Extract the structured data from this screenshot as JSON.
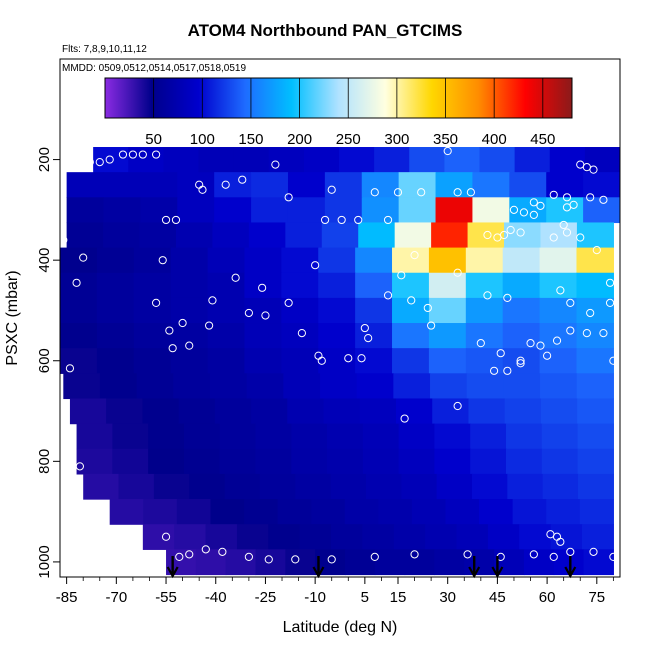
{
  "chart_data": {
    "type": "heatmap",
    "title": "ATOM4 Northbound PAN_GTCIMS",
    "flights_note": "Flts: 7,8,9,10,11,12",
    "dates_note": "MMDD: 0509,0512,0514,0517,0518,0519",
    "xlabel": "Latitude (deg N)",
    "ylabel": "PSXC (mbar)",
    "xlim": [
      -87,
      82
    ],
    "ylim": [
      1030,
      0
    ],
    "x_ticks": [
      -85,
      -70,
      -55,
      -40,
      -25,
      -10,
      5,
      15,
      30,
      45,
      60,
      75
    ],
    "y_ticks": [
      200,
      400,
      600,
      800,
      1000
    ],
    "colorbar": {
      "ticks": [
        50,
        100,
        150,
        200,
        250,
        300,
        350,
        400,
        450
      ],
      "range": [
        0,
        480
      ],
      "colors": [
        "#8a2be2",
        "#00008b",
        "#0000cd",
        "#1e6bff",
        "#00bfff",
        "#b0e2ff",
        "#ffffe0",
        "#ffd700",
        "#ff8c00",
        "#ff0000",
        "#8b1a1a"
      ]
    },
    "grid": false,
    "pressure_bins": [
      200,
      250,
      300,
      350,
      400,
      450,
      500,
      550,
      600,
      650,
      700,
      750,
      800,
      850,
      900,
      950,
      1000
    ],
    "lat_ranges": [
      [
        -77,
        82
      ],
      [
        -85,
        82
      ],
      [
        -85,
        82
      ],
      [
        -85,
        80
      ],
      [
        -87,
        80
      ],
      [
        -87,
        80
      ],
      [
        -87,
        80
      ],
      [
        -87,
        80
      ],
      [
        -87,
        80
      ],
      [
        -86,
        80
      ],
      [
        -84,
        80
      ],
      [
        -82,
        80
      ],
      [
        -82,
        80
      ],
      [
        -80,
        80
      ],
      [
        -72,
        80
      ],
      [
        -62,
        80
      ],
      [
        -55,
        80
      ]
    ],
    "values": [
      [
        100,
        90,
        85,
        80,
        80,
        85,
        90,
        100,
        110,
        130,
        140,
        130,
        110,
        95,
        85
      ],
      [
        80,
        80,
        80,
        85,
        110,
        115,
        95,
        120,
        160,
        220,
        175,
        150,
        130,
        95,
        100
      ],
      [
        60,
        65,
        70,
        85,
        95,
        110,
        110,
        120,
        165,
        220,
        440,
        280,
        180,
        200,
        140
      ],
      [
        55,
        60,
        65,
        75,
        85,
        95,
        110,
        125,
        190,
        280,
        420,
        320,
        230,
        240,
        200
      ],
      [
        50,
        55,
        60,
        70,
        80,
        90,
        100,
        120,
        160,
        300,
        350,
        300,
        250,
        270,
        320
      ],
      [
        55,
        60,
        65,
        70,
        75,
        90,
        100,
        110,
        140,
        200,
        260,
        200,
        180,
        200,
        190
      ],
      [
        55,
        60,
        65,
        70,
        75,
        80,
        90,
        100,
        120,
        180,
        220,
        170,
        150,
        160,
        170
      ],
      [
        50,
        55,
        60,
        65,
        70,
        80,
        85,
        95,
        110,
        150,
        170,
        150,
        140,
        150,
        160
      ],
      [
        45,
        50,
        55,
        60,
        65,
        75,
        80,
        90,
        100,
        120,
        140,
        135,
        130,
        140,
        150
      ],
      [
        45,
        50,
        55,
        60,
        65,
        70,
        80,
        90,
        95,
        110,
        125,
        130,
        130,
        135,
        140
      ],
      [
        40,
        45,
        50,
        55,
        60,
        65,
        75,
        80,
        85,
        95,
        110,
        120,
        125,
        130,
        135
      ],
      [
        40,
        45,
        50,
        55,
        60,
        65,
        70,
        75,
        80,
        90,
        100,
        110,
        120,
        125,
        130
      ],
      [
        38,
        42,
        48,
        52,
        58,
        62,
        68,
        72,
        78,
        85,
        95,
        105,
        115,
        120,
        125
      ],
      [
        35,
        40,
        45,
        50,
        55,
        60,
        65,
        70,
        75,
        80,
        90,
        100,
        110,
        115,
        120
      ],
      [
        35,
        38,
        42,
        48,
        52,
        58,
        62,
        68,
        72,
        78,
        85,
        95,
        105,
        110,
        115
      ],
      [
        32,
        35,
        40,
        45,
        50,
        55,
        60,
        65,
        70,
        75,
        80,
        90,
        100,
        105,
        110
      ],
      [
        30,
        32,
        35,
        40,
        45,
        50,
        55,
        60,
        60,
        65,
        70,
        80,
        90,
        95,
        100
      ]
    ],
    "sample_points": [
      [
        -68,
        190
      ],
      [
        -65,
        190
      ],
      [
        -62,
        190
      ],
      [
        -58,
        190
      ],
      [
        -72,
        200
      ],
      [
        -78,
        205
      ],
      [
        -75,
        205
      ],
      [
        -84,
        215
      ],
      [
        -80,
        215
      ],
      [
        -22,
        210
      ],
      [
        -45,
        250
      ],
      [
        -37,
        250
      ],
      [
        -44,
        260
      ],
      [
        -32,
        240
      ],
      [
        -18,
        275
      ],
      [
        -5,
        260
      ],
      [
        15,
        265
      ],
      [
        22,
        265
      ],
      [
        8,
        265
      ],
      [
        33,
        265
      ],
      [
        37,
        265
      ],
      [
        72,
        215
      ],
      [
        70,
        210
      ],
      [
        74,
        220
      ],
      [
        62,
        270
      ],
      [
        66,
        275
      ],
      [
        73,
        275
      ],
      [
        77,
        280
      ],
      [
        56,
        285
      ],
      [
        58,
        292
      ],
      [
        68,
        290
      ],
      [
        66,
        295
      ],
      [
        50,
        300
      ],
      [
        53,
        305
      ],
      [
        56,
        310
      ],
      [
        -52,
        320
      ],
      [
        -55,
        320
      ],
      [
        -7,
        320
      ],
      [
        -2,
        320
      ],
      [
        3,
        320
      ],
      [
        12,
        320
      ],
      [
        65,
        330
      ],
      [
        45,
        355
      ],
      [
        47,
        350
      ],
      [
        52,
        345
      ],
      [
        49,
        340
      ],
      [
        42,
        350
      ],
      [
        66,
        345
      ],
      [
        70,
        355
      ],
      [
        62,
        355
      ],
      [
        -86,
        360
      ],
      [
        -80,
        395
      ],
      [
        -56,
        400
      ],
      [
        -10,
        410
      ],
      [
        20,
        390
      ],
      [
        75,
        380
      ],
      [
        -34,
        435
      ],
      [
        -26,
        455
      ],
      [
        16,
        430
      ],
      [
        33,
        425
      ],
      [
        30,
        183
      ],
      [
        -82,
        445
      ],
      [
        79,
        445
      ],
      [
        -58,
        485
      ],
      [
        -41,
        480
      ],
      [
        -18,
        485
      ],
      [
        -30,
        505
      ],
      [
        -25,
        510
      ],
      [
        12,
        470
      ],
      [
        19,
        480
      ],
      [
        24,
        495
      ],
      [
        42,
        470
      ],
      [
        48,
        475
      ],
      [
        64,
        460
      ],
      [
        67,
        485
      ],
      [
        73,
        505
      ],
      [
        79,
        485
      ],
      [
        -54,
        540
      ],
      [
        -50,
        525
      ],
      [
        -42,
        530
      ],
      [
        -14,
        545
      ],
      [
        5,
        535
      ],
      [
        25,
        530
      ],
      [
        6,
        555
      ],
      [
        -53,
        575
      ],
      [
        -48,
        570
      ],
      [
        -9,
        590
      ],
      [
        -8,
        600
      ],
      [
        0,
        595
      ],
      [
        4,
        595
      ],
      [
        40,
        565
      ],
      [
        46,
        585
      ],
      [
        52,
        600
      ],
      [
        55,
        565
      ],
      [
        58,
        570
      ],
      [
        63,
        560
      ],
      [
        67,
        540
      ],
      [
        72,
        545
      ],
      [
        77,
        545
      ],
      [
        48,
        620
      ],
      [
        44,
        620
      ],
      [
        52,
        605
      ],
      [
        60,
        590
      ],
      [
        80,
        600
      ],
      [
        -84,
        615
      ],
      [
        33,
        690
      ],
      [
        17,
        715
      ],
      [
        -81,
        810
      ],
      [
        -55,
        950
      ],
      [
        -48,
        985
      ],
      [
        -51,
        990
      ],
      [
        -43,
        975
      ],
      [
        -38,
        980
      ],
      [
        -30,
        990
      ],
      [
        -24,
        995
      ],
      [
        -16,
        995
      ],
      [
        -5,
        995
      ],
      [
        8,
        990
      ],
      [
        20,
        985
      ],
      [
        36,
        985
      ],
      [
        46,
        990
      ],
      [
        56,
        985
      ],
      [
        62,
        990
      ],
      [
        64,
        960
      ],
      [
        63,
        950
      ],
      [
        67,
        980
      ],
      [
        74,
        980
      ],
      [
        80,
        990
      ],
      [
        61,
        945
      ]
    ],
    "arrows_lat": [
      -53,
      -9,
      38,
      45,
      67
    ]
  }
}
